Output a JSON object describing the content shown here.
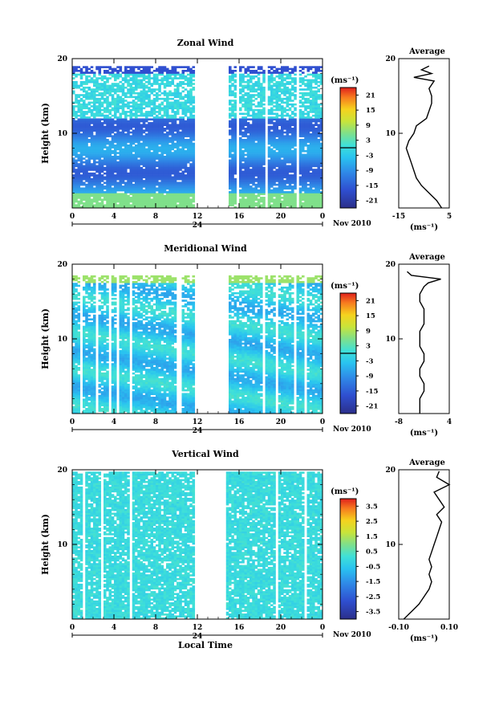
{
  "chart_data": [
    {
      "type": "heatmap",
      "title": "Zonal Wind",
      "ylabel": "Height (km)",
      "ylim": [
        0,
        20
      ],
      "yticks": [
        {
          "v": 20,
          "label": "20"
        },
        {
          "v": 10,
          "label": "10"
        }
      ],
      "xlim": [
        0,
        24
      ],
      "xticks": [
        "0",
        "4",
        "8",
        "12",
        "16",
        "20",
        "0"
      ],
      "date_label": "24",
      "month_label": "Nov 2010",
      "colorbar": {
        "unit": "(ms⁻¹)",
        "range": [
          -24,
          24
        ],
        "labels": [
          "21",
          "15",
          "9",
          "3",
          "-3",
          "-9",
          "-15",
          "-21"
        ],
        "contour_value": 0
      },
      "valid_height_range": [
        0,
        19
      ],
      "gaps": [
        [
          11.7,
          15.0
        ]
      ],
      "profile": {
        "title": "Average",
        "unit": "(ms⁻¹)",
        "xlim": [
          -15,
          5
        ],
        "xticks": [
          "-15",
          "5"
        ],
        "ylim": [
          0,
          20
        ],
        "yticks": [
          "20",
          "10"
        ],
        "heights": [
          0,
          1,
          2,
          3,
          4,
          5,
          6,
          7,
          8,
          9,
          10,
          11,
          12,
          13,
          14,
          15,
          16,
          17,
          17.5,
          18,
          18.5,
          19
        ],
        "values": [
          2,
          0,
          -3,
          -6,
          -8,
          -9,
          -10,
          -11,
          -12,
          -11,
          -9,
          -8,
          -4,
          -3,
          -2,
          -2,
          -3,
          -1,
          -9,
          -2,
          -6,
          -3
        ]
      }
    },
    {
      "type": "heatmap",
      "title": "Meridional Wind",
      "ylabel": "Height (km)",
      "ylim": [
        0,
        20
      ],
      "yticks": [
        {
          "v": 20,
          "label": "20"
        },
        {
          "v": 10,
          "label": "10"
        }
      ],
      "xlim": [
        0,
        24
      ],
      "xticks": [
        "0",
        "4",
        "8",
        "12",
        "16",
        "20",
        "0"
      ],
      "date_label": "24",
      "month_label": "Nov 2010",
      "colorbar": {
        "unit": "(ms⁻¹)",
        "range": [
          -24,
          24
        ],
        "labels": [
          "21",
          "15",
          "9",
          "3",
          "-3",
          "-9",
          "-15",
          "-21"
        ],
        "contour_value": 0
      },
      "valid_height_range": [
        0,
        18.5
      ],
      "gaps": [
        [
          11.7,
          14.8
        ]
      ],
      "profile": {
        "title": "Average",
        "unit": "(ms⁻¹)",
        "xlim": [
          -8,
          4
        ],
        "xticks": [
          "-8",
          "4"
        ],
        "ylim": [
          0,
          20
        ],
        "yticks": [
          "20",
          "10"
        ],
        "heights": [
          0,
          1,
          2,
          3,
          4,
          5,
          6,
          7,
          8,
          9,
          10,
          11,
          12,
          13,
          14,
          15,
          16,
          17,
          17.5,
          18,
          18.5,
          19
        ],
        "values": [
          -3,
          -3,
          -3,
          -2,
          -2,
          -3,
          -3,
          -2,
          -2,
          -3,
          -3,
          -3,
          -2,
          -2,
          -2,
          -3,
          -3,
          -2,
          -1,
          2,
          -5,
          -6
        ]
      }
    },
    {
      "type": "heatmap",
      "title": "Vertical Wind",
      "ylabel": "Height (km)",
      "ylim": [
        0,
        20
      ],
      "yticks": [
        {
          "v": 20,
          "label": "20"
        },
        {
          "v": 10,
          "label": "10"
        }
      ],
      "xlim": [
        0,
        24
      ],
      "xticks": [
        "0",
        "4",
        "8",
        "12",
        "16",
        "20",
        "0"
      ],
      "date_label": "24",
      "month_label": "Nov 2010",
      "xlabel": "Local Time",
      "colorbar": {
        "unit": "(ms⁻¹)",
        "range": [
          -4,
          4
        ],
        "labels": [
          "3.5",
          "2.5",
          "1.5",
          "0.5",
          "-0.5",
          "-1.5",
          "-2.5",
          "-3.5"
        ]
      },
      "valid_height_range": [
        0,
        19.7
      ],
      "gaps": [
        [
          11.7,
          14.8
        ]
      ],
      "profile": {
        "title": "Average",
        "unit": "(ms⁻¹)",
        "xlim": [
          -0.1,
          0.1
        ],
        "xticks": [
          "-0.10",
          "0.10"
        ],
        "ylim": [
          0,
          20
        ],
        "yticks": [
          "20",
          "10"
        ],
        "heights": [
          0,
          1,
          2,
          3,
          4,
          5,
          6,
          7,
          8,
          9,
          10,
          11,
          12,
          13,
          14,
          15,
          16,
          17,
          18,
          19,
          19.8
        ],
        "values": [
          -0.08,
          -0.05,
          -0.02,
          0.0,
          0.02,
          0.03,
          0.02,
          0.03,
          0.02,
          0.03,
          0.04,
          0.05,
          0.06,
          0.07,
          0.05,
          0.08,
          0.06,
          0.04,
          0.1,
          0.05,
          0.06
        ]
      }
    }
  ]
}
